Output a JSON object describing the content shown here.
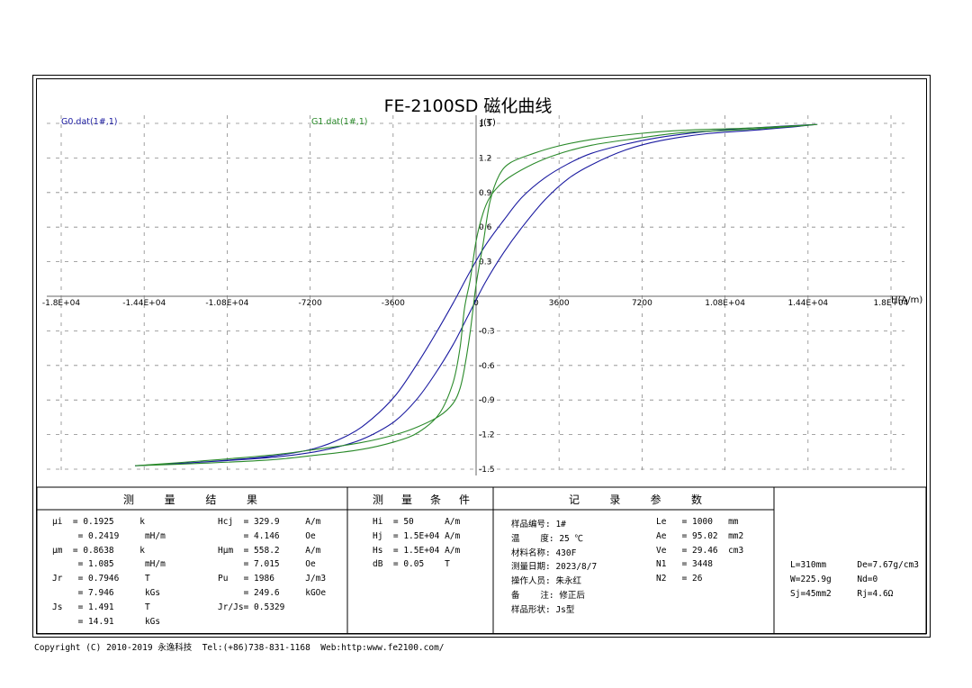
{
  "chart_data": {
    "type": "line",
    "title": "FE-2100SD 磁化曲线",
    "xlabel": "H(A/m)",
    "ylabel": "J(T)",
    "xlim": [
      -18000,
      18000
    ],
    "ylim": [
      -1.5,
      1.5
    ],
    "x_tick_labels": [
      "-1.8E+04",
      "-1.44E+04",
      "-1.08E+04",
      "-7200",
      "-3600",
      "0",
      "3600",
      "7200",
      "1.08E+04",
      "1.44E+04",
      "1.8E+04"
    ],
    "y_tick_labels": [
      "1.5",
      "1.2",
      "0.9",
      "0.6",
      "0.3",
      "0",
      "-0.3",
      "-0.6",
      "-0.9",
      "-1.2",
      "-1.5"
    ],
    "x_ticks": [
      -18000,
      -14400,
      -10800,
      -7200,
      -3600,
      0,
      3600,
      7200,
      10800,
      14400,
      18000
    ],
    "y_ticks": [
      1.5,
      1.2,
      0.9,
      0.6,
      0.3,
      0,
      -0.3,
      -0.6,
      -0.9,
      -1.2,
      -1.5
    ],
    "grid": true,
    "series": [
      {
        "name": "G0.dat(1#,1)",
        "color": "#1a1aa0",
        "x": [
          -14800,
          -12000,
          -9000,
          -7000,
          -5500,
          -4500,
          -3500,
          -2600,
          -1800,
          -1000,
          -300,
          400,
          1200,
          2000,
          3000,
          4000,
          5000,
          6500,
          8000,
          10000,
          12000,
          14800,
          12000,
          10000,
          8000,
          6500,
          5000,
          4000,
          3000,
          2000,
          1200,
          400,
          -300,
          -1000,
          -1800,
          -2600,
          -3500,
          -4500,
          -5500,
          -7000,
          -9000,
          -12000,
          -14800
        ],
        "y": [
          -1.47,
          -1.44,
          -1.4,
          -1.35,
          -1.28,
          -1.2,
          -1.08,
          -0.9,
          -0.68,
          -0.42,
          -0.15,
          0.12,
          0.38,
          0.6,
          0.84,
          1.02,
          1.14,
          1.27,
          1.35,
          1.41,
          1.44,
          1.49,
          1.46,
          1.43,
          1.38,
          1.32,
          1.24,
          1.15,
          1.03,
          0.86,
          0.66,
          0.44,
          0.2,
          -0.06,
          -0.34,
          -0.6,
          -0.86,
          -1.06,
          -1.2,
          -1.32,
          -1.39,
          -1.44,
          -1.47
        ]
      },
      {
        "name": "G1.dat(1#,1)",
        "color": "#2a8a2a",
        "x": [
          -14800,
          -12000,
          -9000,
          -7000,
          -5000,
          -3500,
          -2500,
          -1600,
          -1000,
          -700,
          -500,
          -250,
          0,
          300,
          600,
          1000,
          1500,
          2500,
          3500,
          5000,
          7000,
          9000,
          12000,
          14800,
          12000,
          9000,
          7000,
          5000,
          3500,
          2500,
          1500,
          1000,
          600,
          300,
          0,
          -250,
          -500,
          -700,
          -1000,
          -1600,
          -2500,
          -3500,
          -5000,
          -7000,
          -9000,
          -12000,
          -14800
        ],
        "y": [
          -1.47,
          -1.45,
          -1.42,
          -1.38,
          -1.33,
          -1.26,
          -1.18,
          -1.02,
          -0.75,
          -0.45,
          -0.1,
          0.15,
          0.48,
          0.72,
          0.86,
          0.96,
          1.04,
          1.15,
          1.23,
          1.31,
          1.37,
          1.42,
          1.45,
          1.49,
          1.46,
          1.44,
          1.41,
          1.36,
          1.3,
          1.24,
          1.16,
          1.05,
          0.82,
          0.45,
          0.1,
          -0.3,
          -0.62,
          -0.8,
          -0.93,
          -1.04,
          -1.13,
          -1.2,
          -1.27,
          -1.33,
          -1.38,
          -1.43,
          -1.47
        ]
      }
    ]
  },
  "results_table": {
    "headers": {
      "measure_results": [
        "测",
        "量",
        "结",
        "果"
      ],
      "measure_conditions": [
        "测",
        "量",
        "条",
        "件"
      ],
      "record_params": [
        "记",
        "录",
        "参",
        "数"
      ]
    },
    "results_col1": [
      "μi  = 0.1925     k",
      "     = 0.2419     mH/m",
      "μm  = 0.8638     k",
      "     = 1.085      mH/m",
      "Jr   = 0.7946     T",
      "     = 7.946      kGs",
      "Js   = 1.491      T",
      "     = 14.91      kGs"
    ],
    "results_col2": [
      "Hcj  = 329.9     A/m",
      "     = 4.146     Oe",
      "Hμm  = 558.2     A/m",
      "     = 7.015     Oe",
      "Pu   = 1986      J/m3",
      "     = 249.6     kGOe",
      "Jr/Js= 0.5329"
    ],
    "conditions": [
      "Hi  = 50      A/m",
      "Hj  = 1.5E+04 A/m",
      "Hs  = 1.5E+04 A/m",
      "dB  = 0.05    T"
    ],
    "records_left": [
      "样品编号: 1#",
      "温    度: 25 ℃",
      "材料名称: 430F",
      "测量日期: 2023/8/7",
      "操作人员: 朱永红",
      "备    注: 修正后",
      "样品形状: Js型"
    ],
    "records_right": [
      "Le   = 1000   mm",
      "Ae   = 95.02  mm2",
      "Ve   = 29.46  cm3",
      "N1   = 3448",
      "N2   = 26"
    ],
    "sample_params": [
      "L=310mm      De=7.67g/cm3",
      "W=225.9g     Nd=0",
      "Sj=45mm2     Rj=4.6Ω"
    ]
  },
  "footer": {
    "copyright": "Copyright (C) 2010-2019 永逸科技  Tel:(+86)738-831-1168  Web:http:www.fe2100.com/"
  }
}
